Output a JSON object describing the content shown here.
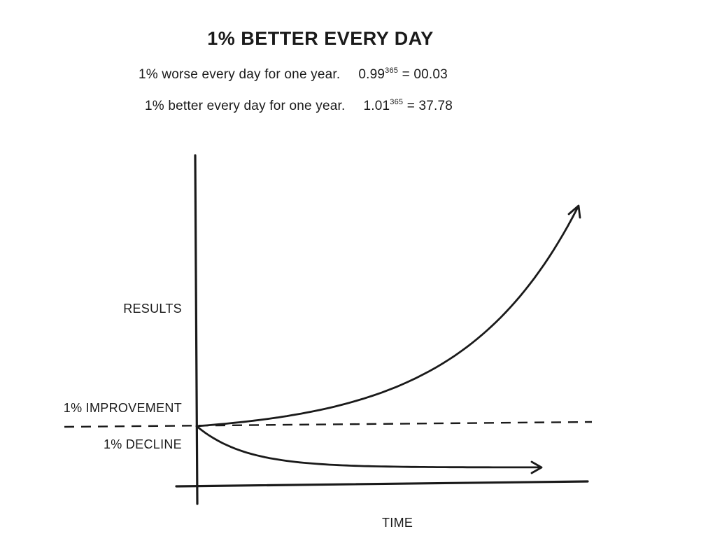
{
  "chart_data": {
    "type": "line",
    "title": "1% BETTER EVERY DAY",
    "equations": [
      {
        "text": "1% worse every day for one year.",
        "base": "0.99",
        "exponent": "365",
        "result": "= 00.03"
      },
      {
        "text": "1% better every day for one year.",
        "base": "1.01",
        "exponent": "365",
        "result": "= 37.78"
      }
    ],
    "xlabel": "TIME",
    "ylabel": "RESULTS",
    "annotations": [
      "1% IMPROVEMENT",
      "1% DECLINE"
    ],
    "x_range": [
      0,
      365
    ],
    "baseline": 1,
    "series": [
      {
        "name": "1% IMPROVEMENT",
        "growth_rate": 1.01,
        "start_value": 1,
        "end_value": 37.78
      },
      {
        "name": "1% DECLINE",
        "growth_rate": 0.99,
        "start_value": 1,
        "end_value": 0.03
      }
    ],
    "grid": false,
    "legend": "none"
  }
}
